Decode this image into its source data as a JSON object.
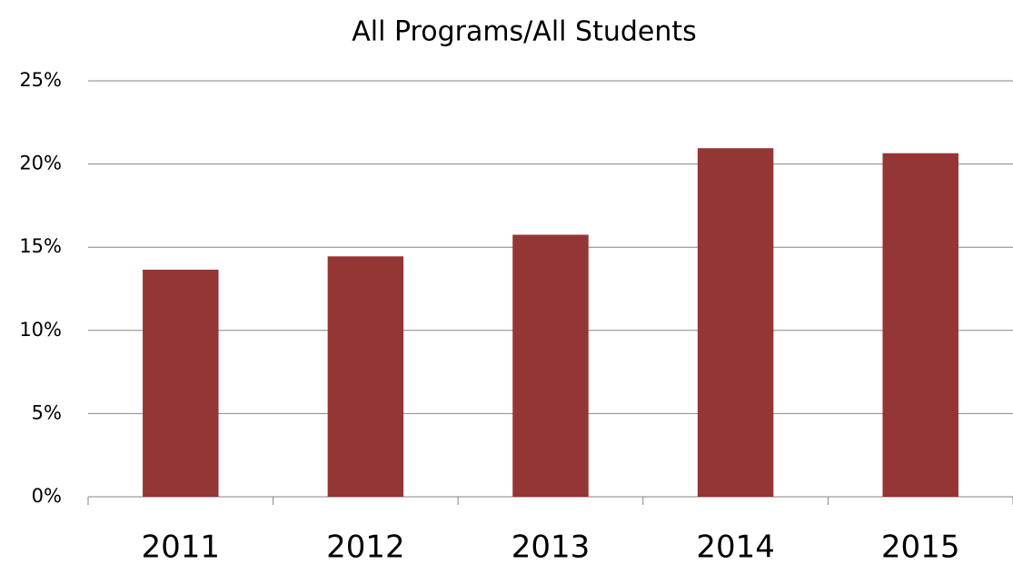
{
  "chart_data": {
    "type": "bar",
    "title": "All Programs/All Students",
    "categories": [
      "2011",
      "2012",
      "2013",
      "2014",
      "2015"
    ],
    "values": [
      13.65,
      14.45,
      15.75,
      20.95,
      20.65
    ],
    "color": "#943634",
    "ylim": [
      0,
      25
    ],
    "yticks": [
      {
        "value": 0,
        "label": "0%"
      },
      {
        "value": 5,
        "label": "5%"
      },
      {
        "value": 10,
        "label": "10%"
      },
      {
        "value": 15,
        "label": "15%"
      },
      {
        "value": 20,
        "label": "20%"
      },
      {
        "value": 25,
        "label": "25%"
      }
    ],
    "grid": true
  }
}
